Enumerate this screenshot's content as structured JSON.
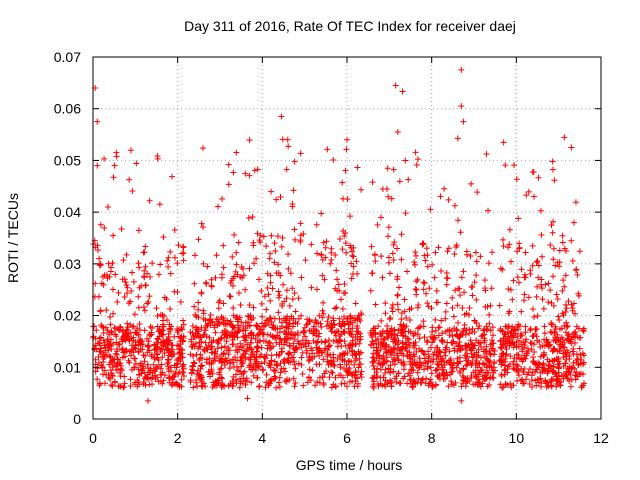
{
  "chart_data": {
    "type": "scatter",
    "title": "Day 311 of 2016, Rate Of TEC Index for receiver daej",
    "xlabel": "GPS time / hours",
    "ylabel": "ROTI / TECUs",
    "xlim": [
      0,
      12
    ],
    "ylim": [
      0,
      0.07
    ],
    "xticks": [
      "0",
      "2",
      "4",
      "6",
      "8",
      "10",
      "12"
    ],
    "yticks": [
      "0",
      "0.01",
      "0.02",
      "0.03",
      "0.04",
      "0.05",
      "0.06",
      "0.07"
    ],
    "grid": true,
    "marker": "+",
    "color": "#ff0000",
    "series": [
      {
        "name": "ROTI",
        "segments": [
          {
            "x_start": 0.0,
            "x_end": 2.15,
            "base": 0.013,
            "spread": 0.012
          },
          {
            "x_start": 2.3,
            "x_end": 6.35,
            "base": 0.014,
            "spread": 0.014
          },
          {
            "x_start": 6.55,
            "x_end": 9.5,
            "base": 0.013,
            "spread": 0.012
          },
          {
            "x_start": 9.6,
            "x_end": 11.6,
            "base": 0.013,
            "spread": 0.012
          }
        ],
        "notable_points": [
          {
            "x": 0.05,
            "y": 0.064
          },
          {
            "x": 0.1,
            "y": 0.0575
          },
          {
            "x": 0.1,
            "y": 0.049
          },
          {
            "x": 0.55,
            "y": 0.0515
          },
          {
            "x": 4.45,
            "y": 0.0585
          },
          {
            "x": 4.6,
            "y": 0.054
          },
          {
            "x": 6.0,
            "y": 0.054
          },
          {
            "x": 7.15,
            "y": 0.0645
          },
          {
            "x": 7.2,
            "y": 0.0555
          },
          {
            "x": 8.7,
            "y": 0.0675
          },
          {
            "x": 8.7,
            "y": 0.0605
          },
          {
            "x": 8.75,
            "y": 0.0575
          },
          {
            "x": 9.7,
            "y": 0.0535
          },
          {
            "x": 11.3,
            "y": 0.0525
          },
          {
            "x": 3.65,
            "y": 0.004
          },
          {
            "x": 1.3,
            "y": 0.0035
          },
          {
            "x": 8.7,
            "y": 0.0035
          }
        ]
      }
    ]
  }
}
